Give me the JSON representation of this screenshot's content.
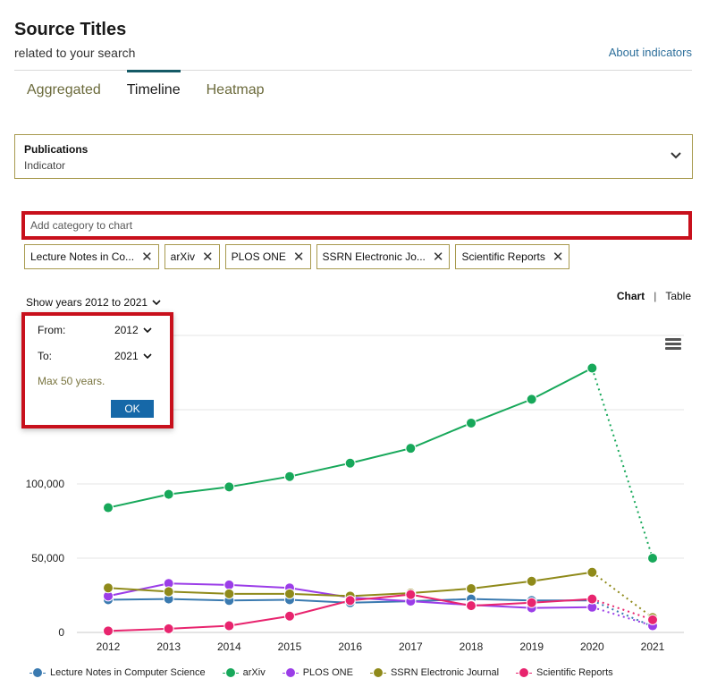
{
  "header": {
    "title": "Source Titles",
    "subtitle": "related to your search",
    "about_link": "About indicators"
  },
  "tabs": [
    {
      "label": "Aggregated",
      "active": false
    },
    {
      "label": "Timeline",
      "active": true
    },
    {
      "label": "Heatmap",
      "active": false
    }
  ],
  "indicator": {
    "value": "Publications",
    "label": "Indicator",
    "icon": "chevron-down-icon"
  },
  "add_category": {
    "placeholder": "Add category to chart"
  },
  "chips": [
    {
      "label": "Lecture Notes in Co..."
    },
    {
      "label": "arXiv"
    },
    {
      "label": "PLOS ONE"
    },
    {
      "label": "SSRN Electronic Jo..."
    },
    {
      "label": "Scientific Reports"
    }
  ],
  "chip_close_glyph": "✕",
  "years": {
    "show_label": "Show years 2012 to 2021",
    "from_label": "From:",
    "from_value": "2012",
    "to_label": "To:",
    "to_value": "2021",
    "note": "Max 50 years.",
    "ok_label": "OK"
  },
  "view_toggle": {
    "chart": "Chart",
    "separator": "|",
    "table": "Table"
  },
  "colors": {
    "lecture_notes": "#3a7ab0",
    "arxiv": "#17a85a",
    "plos_one": "#9b3de8",
    "ssrn": "#8f8a1a",
    "scientific_reports": "#e8246e",
    "highlight": "#c8101c",
    "accent": "#155a66"
  },
  "chart_data": {
    "type": "line",
    "x": [
      2012,
      2013,
      2014,
      2015,
      2016,
      2017,
      2018,
      2019,
      2020,
      2021
    ],
    "ylim": [
      0,
      190000
    ],
    "y_ticks": [
      0,
      50000,
      100000
    ],
    "y_tick_labels": [
      "0",
      "50,000",
      "100,000"
    ],
    "x_tick_labels": [
      "2012",
      "2013",
      "2014",
      "2015",
      "2016",
      "2017",
      "2018",
      "2019",
      "2020",
      "2021"
    ],
    "grid": true,
    "last_segment_dotted": true,
    "series": [
      {
        "name": "Lecture Notes in Computer Science",
        "color_key": "lecture_notes",
        "values": [
          22000,
          22500,
          21500,
          22000,
          20000,
          21000,
          22500,
          21500,
          21500,
          4000
        ]
      },
      {
        "name": "arXiv",
        "color_key": "arxiv",
        "values": [
          84000,
          93000,
          98000,
          105000,
          114000,
          124000,
          141000,
          157000,
          178000,
          50000
        ]
      },
      {
        "name": "PLOS ONE",
        "color_key": "plos_one",
        "values": [
          24500,
          33000,
          32000,
          30000,
          23500,
          21000,
          18500,
          16500,
          17000,
          4500
        ]
      },
      {
        "name": "SSRN Electronic Journal",
        "color_key": "ssrn",
        "values": [
          30000,
          27500,
          26000,
          26000,
          24500,
          26500,
          29500,
          34500,
          40500,
          10000
        ]
      },
      {
        "name": "Scientific Reports",
        "color_key": "scientific_reports",
        "values": [
          1000,
          2500,
          4500,
          11000,
          21500,
          25500,
          18000,
          20000,
          22500,
          8500
        ]
      }
    ],
    "legend_position": "bottom"
  }
}
